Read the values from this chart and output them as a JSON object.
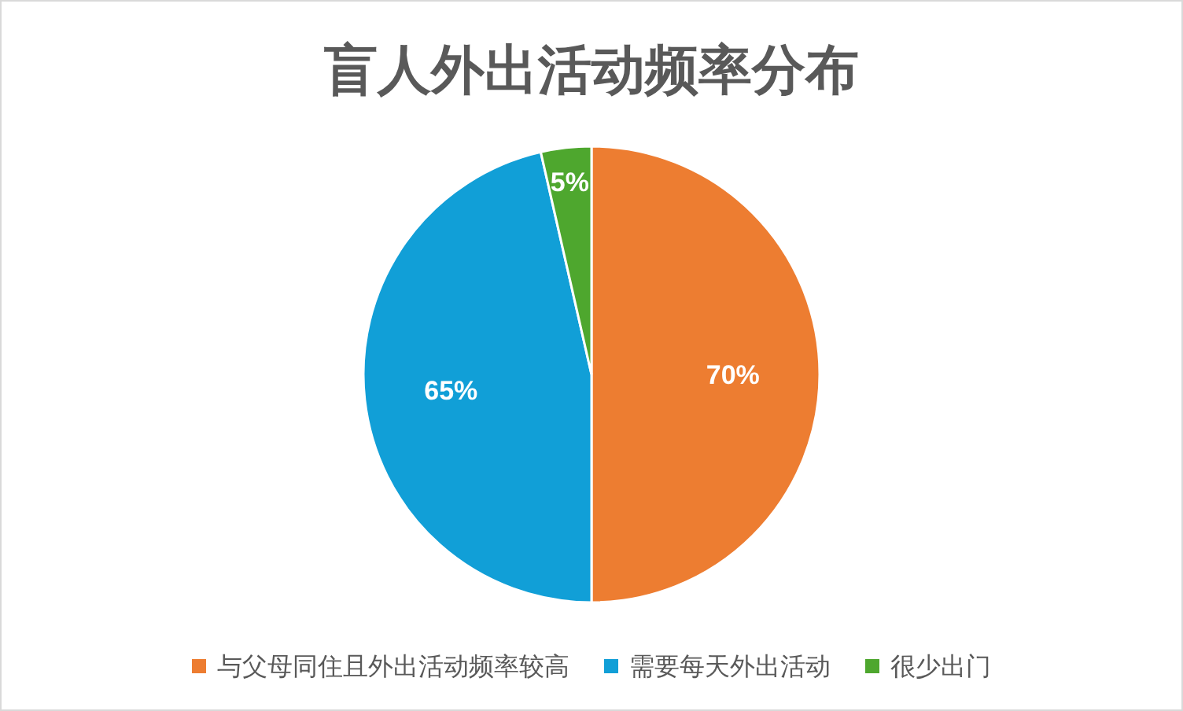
{
  "chart_data": {
    "type": "pie",
    "title": "盲人外出活动频率分布",
    "categories": [
      "与父母同住且外出活动频率较高",
      "需要每天外出活动",
      "很少出门"
    ],
    "values": [
      70,
      65,
      5
    ],
    "value_labels": [
      "70%",
      "65%",
      "5%"
    ],
    "colors": [
      "#ed7d31",
      "#119fd7",
      "#4ea72e"
    ],
    "legend": "bottom"
  }
}
